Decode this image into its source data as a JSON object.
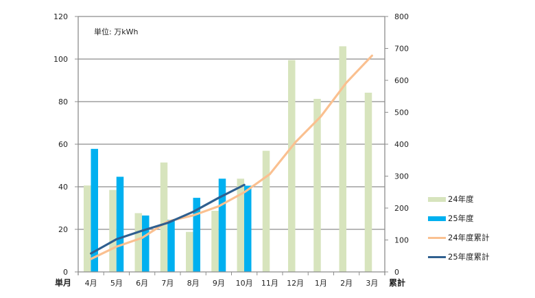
{
  "chart_data": {
    "type": "bar",
    "title": "",
    "unit_label": "単位: 万kWh",
    "categories": [
      "4月",
      "5月",
      "6月",
      "7月",
      "8月",
      "9月",
      "10月",
      "11月",
      "12月",
      "1月",
      "2月",
      "3月"
    ],
    "xlabel_left": "単月",
    "xlabel_right": "累計",
    "y_left": {
      "range": [
        0,
        120
      ],
      "ticks": [
        "0",
        "20",
        "40",
        "60",
        "80",
        "100",
        "120"
      ]
    },
    "y_right": {
      "range": [
        0,
        800
      ],
      "ticks": [
        "0",
        "100",
        "200",
        "300",
        "400",
        "500",
        "600",
        "700",
        "800"
      ]
    },
    "grid": true,
    "legend_position": "right",
    "series": [
      {
        "name": "24年度",
        "kind": "bar",
        "axis": "left",
        "color": "#d7e4bd",
        "values": [
          40.6,
          38.5,
          27.6,
          51.4,
          18.8,
          28.7,
          43.8,
          56.9,
          99.5,
          81.3,
          106.0,
          84.2
        ]
      },
      {
        "name": "25年度",
        "kind": "bar",
        "axis": "left",
        "color": "#00b0f0",
        "values": [
          57.8,
          44.7,
          26.5,
          24.5,
          34.8,
          43.8,
          40.5,
          null,
          null,
          null,
          null,
          null
        ]
      },
      {
        "name": "24年度累計",
        "kind": "line",
        "axis": "right",
        "color": "#fac090",
        "values": [
          40.6,
          79.1,
          106.7,
          158.1,
          176.9,
          205.6,
          249.4,
          306.3,
          405.8,
          487.1,
          593.1,
          677.3
        ]
      },
      {
        "name": "25年度累計",
        "kind": "line",
        "axis": "right",
        "color": "#2f5f8f",
        "values": [
          57.8,
          102.5,
          129.0,
          153.5,
          188.3,
          232.1,
          272.6,
          null,
          null,
          null,
          null,
          null
        ]
      }
    ]
  }
}
